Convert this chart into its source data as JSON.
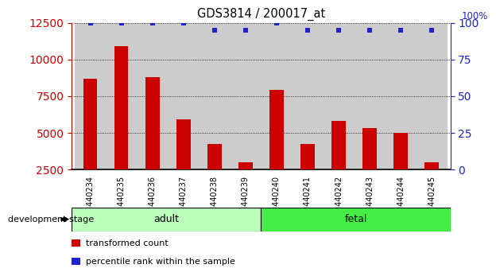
{
  "title": "GDS3814 / 200017_at",
  "samples": [
    "GSM440234",
    "GSM440235",
    "GSM440236",
    "GSM440237",
    "GSM440238",
    "GSM440239",
    "GSM440240",
    "GSM440241",
    "GSM440242",
    "GSM440243",
    "GSM440244",
    "GSM440245"
  ],
  "red_values": [
    8700,
    10900,
    8800,
    5900,
    4200,
    3000,
    7900,
    4200,
    5800,
    5300,
    5000,
    3000
  ],
  "blue_values": [
    100,
    100,
    100,
    100,
    95,
    95,
    100,
    95,
    95,
    95,
    95,
    95
  ],
  "groups": [
    {
      "label": "adult",
      "start": 0,
      "end": 6,
      "color": "#bbffbb"
    },
    {
      "label": "fetal",
      "start": 6,
      "end": 12,
      "color": "#44ee44"
    }
  ],
  "dev_stage_label": "development stage",
  "ylim_left": [
    2500,
    12500
  ],
  "ylim_right": [
    0,
    100
  ],
  "yticks_left": [
    2500,
    5000,
    7500,
    10000,
    12500
  ],
  "yticks_right": [
    0,
    25,
    50,
    75,
    100
  ],
  "bar_color": "#cc0000",
  "dot_color": "#2222cc",
  "legend_items": [
    {
      "color": "#cc0000",
      "label": "transformed count"
    },
    {
      "color": "#2222cc",
      "label": "percentile rank within the sample"
    }
  ]
}
